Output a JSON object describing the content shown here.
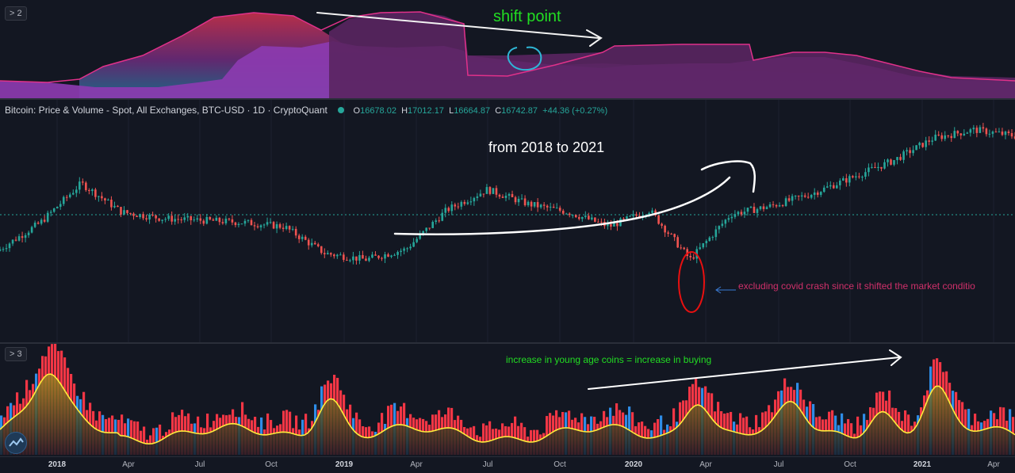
{
  "top_pane": {
    "toggle_label": "> 2",
    "annotation": "shift point",
    "colors": {
      "fill_purple": "#8c3bb0",
      "fill_dark": "#5a2560",
      "line_pink": "#e0318a",
      "teal_band": "#1d6f8f",
      "circle": "#2fb6d6",
      "annotation": "#22dd22"
    }
  },
  "main_pane": {
    "legend": {
      "title": "Bitcoin: Price & Volume - Spot, All Exchanges, BTC-USD · 1D · CryptoQuant",
      "o_key": "O",
      "o": "16678.02",
      "h_key": "H",
      "h": "17012.17",
      "l_key": "L",
      "l": "16664.87",
      "c_key": "C",
      "c": "16742.87",
      "change": "+44.36 (+0.27%)"
    },
    "annotation_range": "from 2018 to 2021",
    "annotation_covid": "excluding covid crash since it shifted the market conditio",
    "colors": {
      "up": "#26a69a",
      "down": "#ef5350",
      "ref_line": "#26a69a",
      "covid_text": "#d0306a",
      "circle": "#e81010"
    }
  },
  "bottom_pane": {
    "toggle_label": "> 3",
    "annotation": "increase in young age coins = increase in buying",
    "colors": {
      "red": "#f23645",
      "blue": "#2e8ce6",
      "yellow_line": "#ffeb3b",
      "olive": "#8a7a1e",
      "annotation": "#22dd22"
    }
  },
  "x_axis": {
    "ticks": [
      {
        "label": "2018",
        "year": true
      },
      {
        "label": "Apr",
        "year": false
      },
      {
        "label": "Jul",
        "year": false
      },
      {
        "label": "Oct",
        "year": false
      },
      {
        "label": "2019",
        "year": true
      },
      {
        "label": "Apr",
        "year": false
      },
      {
        "label": "Jul",
        "year": false
      },
      {
        "label": "Oct",
        "year": false
      },
      {
        "label": "2020",
        "year": true
      },
      {
        "label": "Apr",
        "year": false
      },
      {
        "label": "Jul",
        "year": false
      },
      {
        "label": "Oct",
        "year": false
      },
      {
        "label": "2021",
        "year": true
      },
      {
        "label": "Apr",
        "year": false
      }
    ]
  },
  "chart_data": {
    "type": "line",
    "title": "Bitcoin: Price & Volume - Spot, All Exchanges, BTC-USD · 1D · CryptoQuant",
    "x": [
      "2017-12",
      "2018-01",
      "2018-02",
      "2018-04",
      "2018-06",
      "2018-08",
      "2018-10",
      "2018-11",
      "2018-12",
      "2019-02",
      "2019-04",
      "2019-06",
      "2019-07",
      "2019-09",
      "2019-10",
      "2019-12",
      "2020-02",
      "2020-03",
      "2020-05",
      "2020-07",
      "2020-09",
      "2020-11",
      "2020-12",
      "2021-01",
      "2021-02",
      "2021-04"
    ],
    "series": [
      {
        "values": [
          0.39,
          0.52,
          0.71,
          0.57,
          0.54,
          0.53,
          0.52,
          0.5,
          0.37,
          0.34,
          0.39,
          0.58,
          0.68,
          0.61,
          0.57,
          0.5,
          0.58,
          0.34,
          0.56,
          0.6,
          0.66,
          0.74,
          0.82,
          0.93,
          0.97,
          0.94
        ]
      }
    ]
  }
}
